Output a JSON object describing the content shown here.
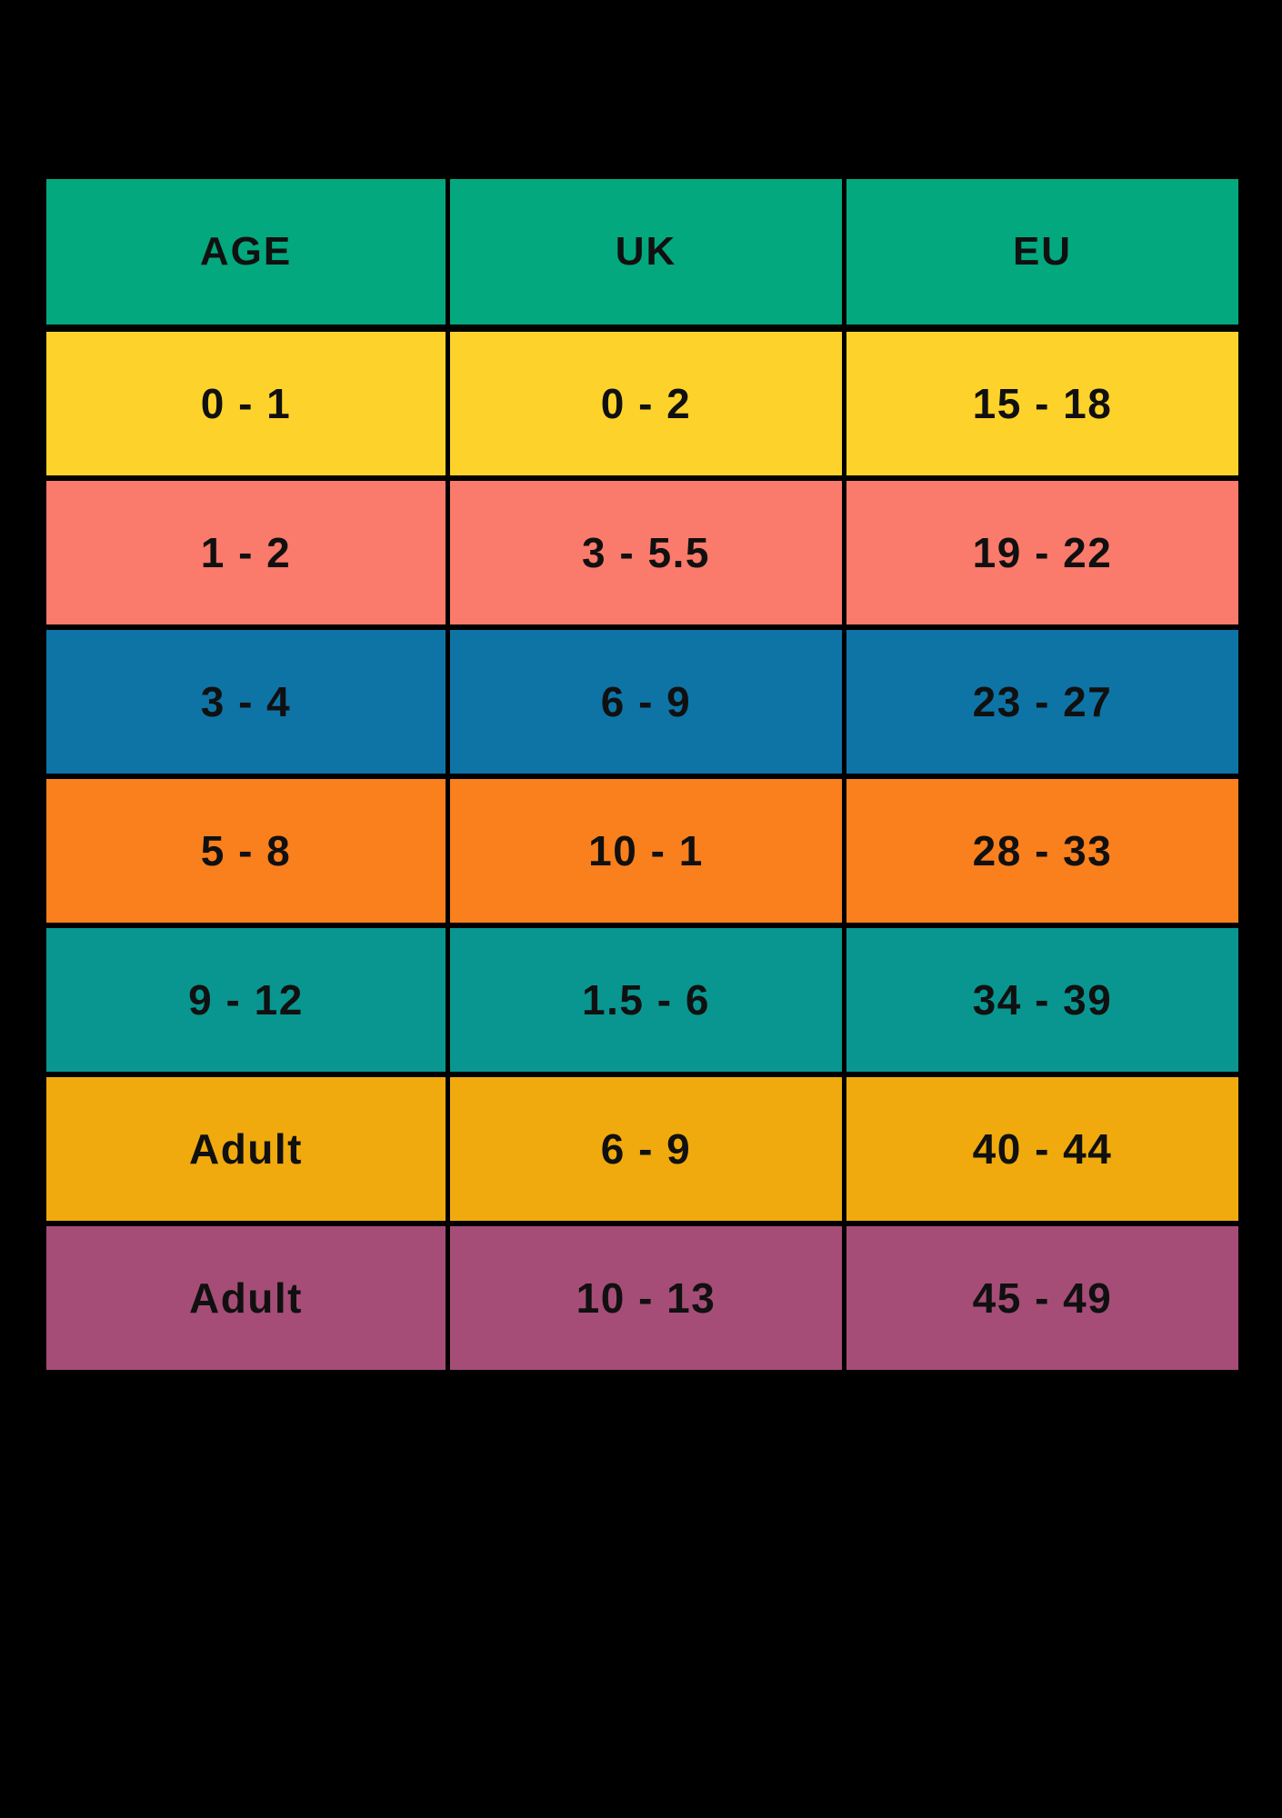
{
  "page": {
    "background_color": "#000000",
    "border_color": "#000000",
    "text_color": "#101010"
  },
  "table": {
    "header_color": "#04A87E",
    "columns": [
      {
        "key": "age",
        "label": "AGE"
      },
      {
        "key": "uk",
        "label": "UK"
      },
      {
        "key": "eu",
        "label": "EU"
      }
    ],
    "rows": [
      {
        "age": "0 - 1",
        "uk": "0 - 2",
        "eu": "15 - 18",
        "color": "#FDD32B"
      },
      {
        "age": "1 - 2",
        "uk": "3 - 5.5",
        "eu": "19 - 22",
        "color": "#FA7A6B"
      },
      {
        "age": "3 - 4",
        "uk": "6 - 9",
        "eu": "23 - 27",
        "color": "#0E74A6"
      },
      {
        "age": "5 - 8",
        "uk": "10 - 1",
        "eu": "28 - 33",
        "color": "#FA7F1D"
      },
      {
        "age": "9 - 12",
        "uk": "1.5 - 6",
        "eu": "34 - 39",
        "color": "#0A9690"
      },
      {
        "age": "Adult",
        "uk": "6 - 9",
        "eu": "40 - 44",
        "color": "#F0AA0D"
      },
      {
        "age": "Adult",
        "uk": "10 - 13",
        "eu": "45 - 49",
        "color": "#A54D77"
      }
    ]
  },
  "chart_data": {
    "type": "table",
    "title": "",
    "columns": [
      "AGE",
      "UK",
      "EU"
    ],
    "rows": [
      [
        "0 - 1",
        "0 - 2",
        "15 - 18"
      ],
      [
        "1 - 2",
        "3 - 5.5",
        "19 - 22"
      ],
      [
        "3 - 4",
        "6 - 9",
        "23 - 27"
      ],
      [
        "5 - 8",
        "10 - 1",
        "28 - 33"
      ],
      [
        "9 - 12",
        "1.5 - 6",
        "34 - 39"
      ],
      [
        "Adult",
        "6 - 9",
        "40 - 44"
      ],
      [
        "Adult",
        "10 - 13",
        "45 - 49"
      ]
    ],
    "row_colors": [
      "#FDD32B",
      "#FA7A6B",
      "#0E74A6",
      "#FA7F1D",
      "#0A9690",
      "#F0AA0D",
      "#A54D77"
    ],
    "header_color": "#04A87E",
    "legend_position": "none",
    "grid": true
  }
}
